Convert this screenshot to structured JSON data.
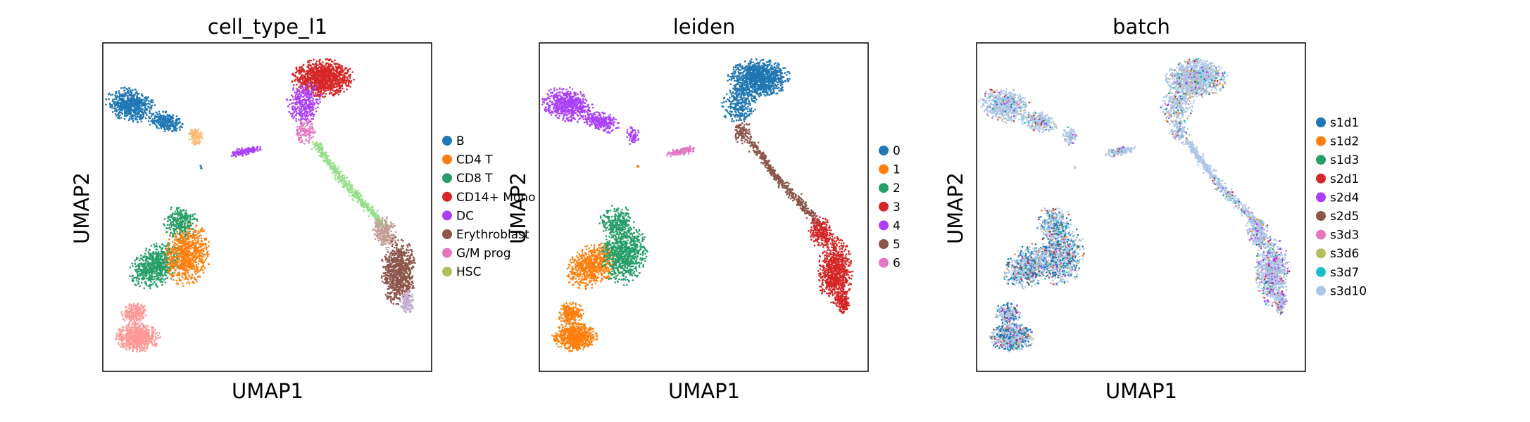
{
  "colors": {
    "frame": "#000000",
    "background": "#ffffff"
  },
  "chart_data": [
    {
      "type": "scatter",
      "title": "cell_type_l1",
      "xlabel": "UMAP1",
      "ylabel": "UMAP2",
      "grid": false,
      "ticks": false,
      "legend_placement": "right",
      "legend": [
        {
          "label": "B",
          "color": "#1f77b4"
        },
        {
          "label": "CD4 T",
          "color": "#ff7f0e"
        },
        {
          "label": "CD8 T",
          "color": "#279e68"
        },
        {
          "label": "CD14+ Mono",
          "color": "#d62728"
        },
        {
          "label": "DC",
          "color": "#aa40fc"
        },
        {
          "label": "Erythroblast",
          "color": "#8c564b"
        },
        {
          "label": "G/M prog",
          "color": "#e377c2"
        },
        {
          "label": "HSC",
          "color": "#b5bd61"
        }
      ]
    },
    {
      "type": "scatter",
      "title": "leiden",
      "xlabel": "UMAP1",
      "ylabel": "UMAP2",
      "grid": false,
      "ticks": false,
      "legend_placement": "right",
      "legend": [
        {
          "label": "0",
          "color": "#1f77b4"
        },
        {
          "label": "1",
          "color": "#ff7f0e"
        },
        {
          "label": "2",
          "color": "#279e68"
        },
        {
          "label": "3",
          "color": "#d62728"
        },
        {
          "label": "4",
          "color": "#aa40fc"
        },
        {
          "label": "5",
          "color": "#8c564b"
        },
        {
          "label": "6",
          "color": "#e377c2"
        }
      ]
    },
    {
      "type": "scatter",
      "title": "batch",
      "xlabel": "UMAP1",
      "ylabel": "UMAP2",
      "grid": false,
      "ticks": false,
      "legend_placement": "right",
      "legend": [
        {
          "label": "s1d1",
          "color": "#1f77b4"
        },
        {
          "label": "s1d2",
          "color": "#ff7f0e"
        },
        {
          "label": "s1d3",
          "color": "#279e68"
        },
        {
          "label": "s2d1",
          "color": "#d62728"
        },
        {
          "label": "s2d4",
          "color": "#aa40fc"
        },
        {
          "label": "s2d5",
          "color": "#8c564b"
        },
        {
          "label": "s3d3",
          "color": "#e377c2"
        },
        {
          "label": "s3d6",
          "color": "#b5bd61"
        },
        {
          "label": "s3d7",
          "color": "#17becf"
        },
        {
          "label": "s3d10",
          "color": "#aec7e8"
        }
      ]
    }
  ]
}
